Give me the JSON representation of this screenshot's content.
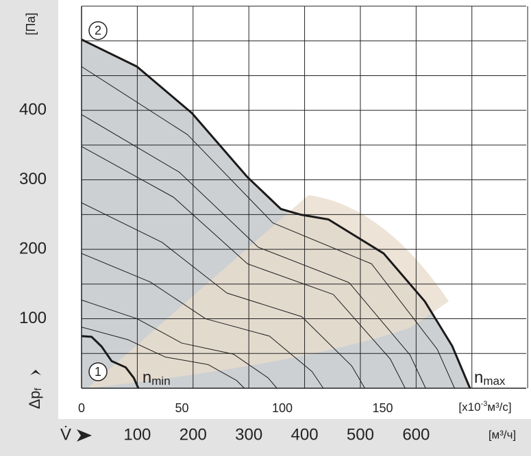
{
  "chart_data": {
    "type": "line",
    "y_unit": "[Па]",
    "y_axis_label": {
      "text": "Δp",
      "sub": "f"
    },
    "x_unit": {
      "text": "[x10",
      "sup": "-3",
      "rest": "м³/с]"
    },
    "x2_axis_label": "V̇",
    "x2_unit": "[м³/ч]",
    "xlim": [
      0,
      221.5
    ],
    "xticks": [
      0,
      50,
      100,
      150
    ],
    "x2lim": [
      0,
      797.4
    ],
    "x2ticks": [
      100,
      200,
      300,
      400,
      500,
      600
    ],
    "x2grid": [
      100,
      200,
      300,
      400,
      500,
      600,
      700,
      800
    ],
    "ylim": [
      0,
      550
    ],
    "yticks": [
      100,
      200,
      300,
      400
    ],
    "ygrid": [
      50,
      100,
      150,
      200,
      250,
      300,
      350,
      400,
      450,
      500,
      550
    ],
    "grid": true,
    "area_color": "#cdd0d3",
    "line_color": "#1a1a1a",
    "curve_labels": [
      {
        "text": "n",
        "sub": "max"
      },
      {
        "text": "n",
        "sub": "min"
      }
    ],
    "series": [
      {
        "marker_label": "2",
        "width": 3,
        "x": [
          0,
          27.6,
          55,
          82.6,
          99.3,
          108.9,
          123,
          150.5,
          171,
          184.6,
          193.5
        ],
        "values": [
          502,
          463,
          396,
          304,
          258,
          250,
          243,
          194,
          125,
          61,
          0
        ]
      },
      {
        "marker_label": "1",
        "width": 3,
        "x": [
          0,
          5,
          10,
          15,
          22,
          26,
          28.3
        ],
        "values": [
          75,
          74,
          60,
          39,
          30,
          15,
          0
        ]
      },
      {
        "width": 1,
        "x": [
          0,
          52.8,
          95.3,
          144.5,
          177.2,
          185.8
        ],
        "values": [
          463,
          365,
          238,
          179,
          56,
          0
        ]
      },
      {
        "width": 1,
        "x": [
          0,
          48.7,
          88,
          133.3,
          163.6,
          171.4
        ],
        "values": [
          394,
          311,
          203,
          152,
          48,
          0
        ]
      },
      {
        "width": 1,
        "x": [
          0,
          45.8,
          82.7,
          125.4,
          153.8,
          161.2
        ],
        "values": [
          348,
          275,
          179,
          135,
          42,
          0
        ]
      },
      {
        "width": 1,
        "x": [
          0,
          40.1,
          72.4,
          109.7,
          134.6,
          141.1
        ],
        "values": [
          267,
          210,
          137,
          103,
          32,
          0
        ]
      },
      {
        "width": 1,
        "x": [
          0,
          34.2,
          61.8,
          93.6,
          114.8,
          120.4
        ],
        "values": [
          194,
          153,
          100,
          75,
          24,
          0
        ]
      },
      {
        "width": 1,
        "x": [
          0,
          27.7,
          49.9,
          75.7,
          92.9,
          97.3
        ],
        "values": [
          127,
          100,
          65,
          49,
          15,
          0
        ]
      },
      {
        "width": 1,
        "x": [
          0,
          23,
          41.6,
          63.1,
          77.3,
          81.1
        ],
        "values": [
          88,
          70,
          45,
          34,
          11,
          0
        ]
      }
    ]
  }
}
